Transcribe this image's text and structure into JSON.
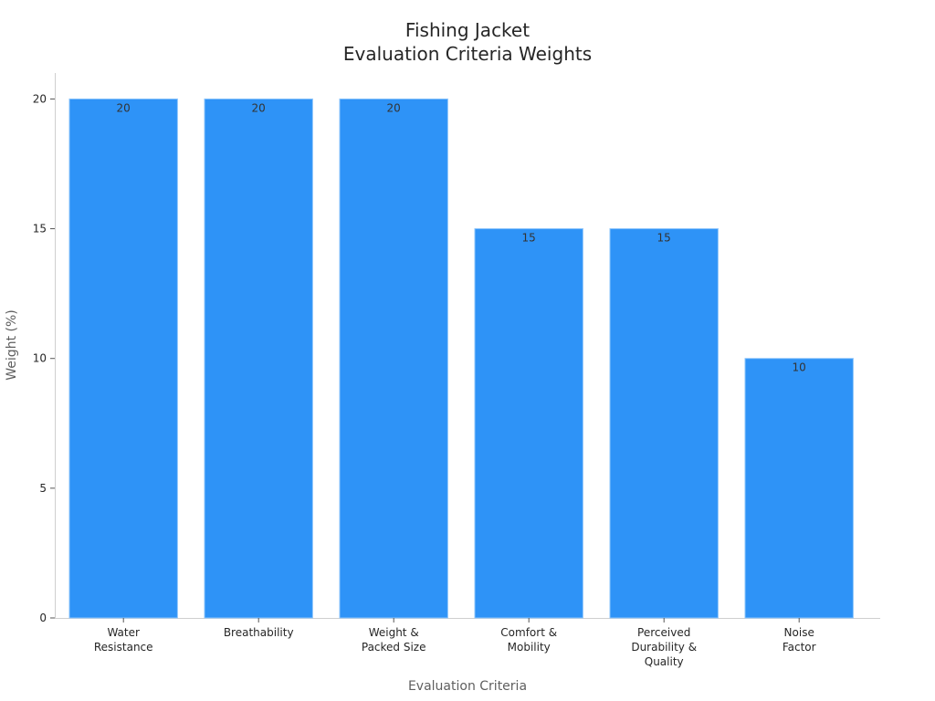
{
  "chart_data": {
    "type": "bar",
    "title_lines": [
      "Fishing Jacket",
      "Evaluation Criteria Weights"
    ],
    "xlabel": "Evaluation Criteria",
    "ylabel": "Weight (%)",
    "categories": [
      [
        "Water",
        "Resistance"
      ],
      [
        "Breathability"
      ],
      [
        "Weight &",
        "Packed Size"
      ],
      [
        "Comfort &",
        "Mobility"
      ],
      [
        "Perceived",
        "Durability &",
        "Quality"
      ],
      [
        "Noise",
        "Factor"
      ]
    ],
    "values": [
      20,
      20,
      20,
      15,
      15,
      10
    ],
    "data_labels": [
      "20",
      "20",
      "20",
      "15",
      "15",
      "10"
    ],
    "ylim": [
      0,
      21
    ],
    "yticks": [
      0,
      5,
      10,
      15,
      20
    ],
    "ytick_labels": [
      "0",
      "5",
      "10",
      "15",
      "20"
    ],
    "grid": false,
    "legend": "none",
    "bar_color": "#2e93f7",
    "bar_edge_color": "#8cc4fb"
  }
}
